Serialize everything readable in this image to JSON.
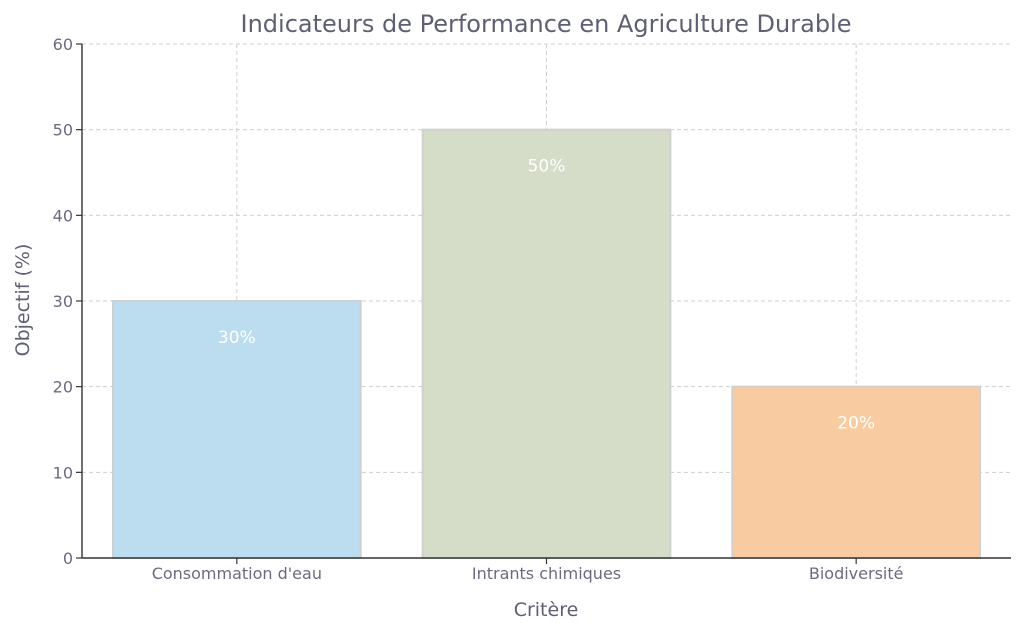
{
  "chart_data": {
    "type": "bar",
    "title": "Indicateurs de Performance en Agriculture Durable",
    "xlabel": "Critère",
    "ylabel": "Objectif (%)",
    "categories": [
      "Consommation d'eau",
      "Intrants chimiques",
      "Biodiversité"
    ],
    "values": [
      30,
      50,
      20
    ],
    "data_labels": [
      "30%",
      "50%",
      "20%"
    ],
    "colors": [
      "#bcdcef",
      "#d5dcc8",
      "#f8cba1"
    ],
    "ylim": [
      0,
      60
    ],
    "yticks": [
      0,
      10,
      20,
      30,
      40,
      50,
      60
    ],
    "grid": true
  }
}
